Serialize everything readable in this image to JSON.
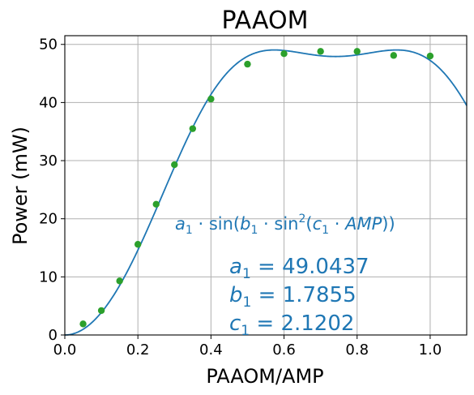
{
  "chart_data": {
    "type": "scatter",
    "title": "PAAOM",
    "xlabel": "PAAOM/AMP",
    "ylabel": "Power (mW)",
    "xlim": [
      0.0,
      1.1
    ],
    "ylim": [
      0,
      51.5
    ],
    "xticks": [
      0.0,
      0.2,
      0.4,
      0.6,
      0.8,
      1.0
    ],
    "xtick_labels": [
      "0.0",
      "0.2",
      "0.4",
      "0.6",
      "0.8",
      "1.0"
    ],
    "yticks": [
      0,
      10,
      20,
      30,
      40,
      50
    ],
    "ytick_labels": [
      "0",
      "10",
      "20",
      "30",
      "40",
      "50"
    ],
    "grid": true,
    "series": [
      {
        "kind": "scatter",
        "color": "#2ca02c",
        "x": [
          0.05,
          0.1,
          0.15,
          0.2,
          0.25,
          0.3,
          0.35,
          0.4,
          0.5,
          0.6,
          0.7,
          0.8,
          0.9,
          1.0
        ],
        "y": [
          1.9,
          4.2,
          9.3,
          15.6,
          22.5,
          29.3,
          35.5,
          40.6,
          46.6,
          48.4,
          48.8,
          48.8,
          48.1,
          48.0
        ]
      },
      {
        "kind": "fit-line",
        "color": "#1f77b4",
        "model": "a1*sin(b1*sin^2(c1*x))",
        "params": {
          "a1": 49.0437,
          "b1": 1.7855,
          "c1": 2.1202
        }
      }
    ],
    "annotation": {
      "formula_parts": [
        "a",
        "1",
        " · sin(",
        "b",
        "1",
        " · sin",
        "2",
        "(",
        "c",
        "1",
        " · ",
        "AMP",
        "))"
      ],
      "params": [
        {
          "sym": "a",
          "sub": "1",
          "text": " = 49.0437"
        },
        {
          "sym": "b",
          "sub": "1",
          "text": " = 1.7855"
        },
        {
          "sym": "c",
          "sub": "1",
          "text": " = 2.1202"
        }
      ]
    }
  }
}
